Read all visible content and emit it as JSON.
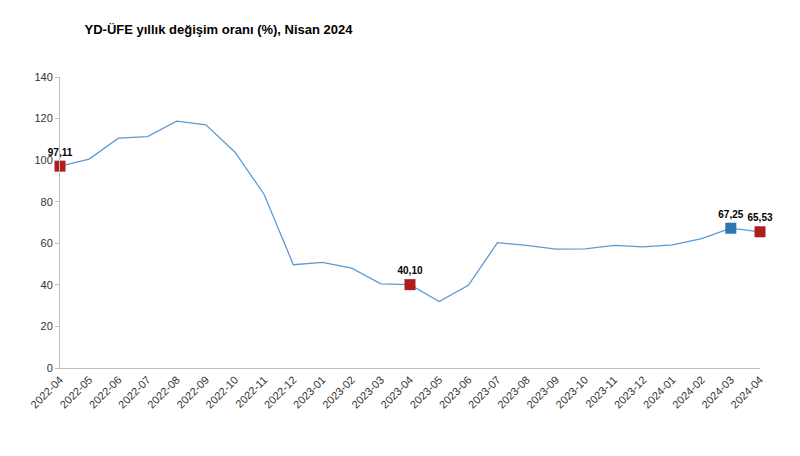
{
  "chart_data": {
    "type": "line",
    "title": "YD-ÜFE yıllık değişim oranı (%), Nisan 2024",
    "categories": [
      "2022-04",
      "2022-05",
      "2022-06",
      "2022-07",
      "2022-08",
      "2022-09",
      "2022-10",
      "2022-11",
      "2022-12",
      "2023-01",
      "2023-02",
      "2023-03",
      "2023-04",
      "2023-05",
      "2023-06",
      "2023-07",
      "2023-08",
      "2023-09",
      "2023-10",
      "2023-11",
      "2023-12",
      "2024-01",
      "2024-02",
      "2024-03",
      "2024-04"
    ],
    "values": [
      97.11,
      100.5,
      110.6,
      111.3,
      118.8,
      117.0,
      103.8,
      83.5,
      49.7,
      50.8,
      48.0,
      40.5,
      40.1,
      32.0,
      39.8,
      60.3,
      59.0,
      57.2,
      57.3,
      59.0,
      58.3,
      59.2,
      62.3,
      67.25,
      65.53
    ],
    "color": "#5b9bd5",
    "highlights": [
      {
        "category": "2022-04",
        "label": "97,11",
        "color": "#b01c1c",
        "marker": "square"
      },
      {
        "category": "2023-04",
        "label": "40,10",
        "color": "#b01c1c",
        "marker": "square"
      },
      {
        "category": "2024-03",
        "label": "67,25",
        "color": "#2e75b6",
        "marker": "square"
      },
      {
        "category": "2024-04",
        "label": "65,53",
        "color": "#b01c1c",
        "marker": "square"
      }
    ],
    "ylim": [
      0,
      140
    ],
    "yticks": [
      0,
      20,
      40,
      60,
      80,
      100,
      120,
      140
    ],
    "grid": false
  }
}
